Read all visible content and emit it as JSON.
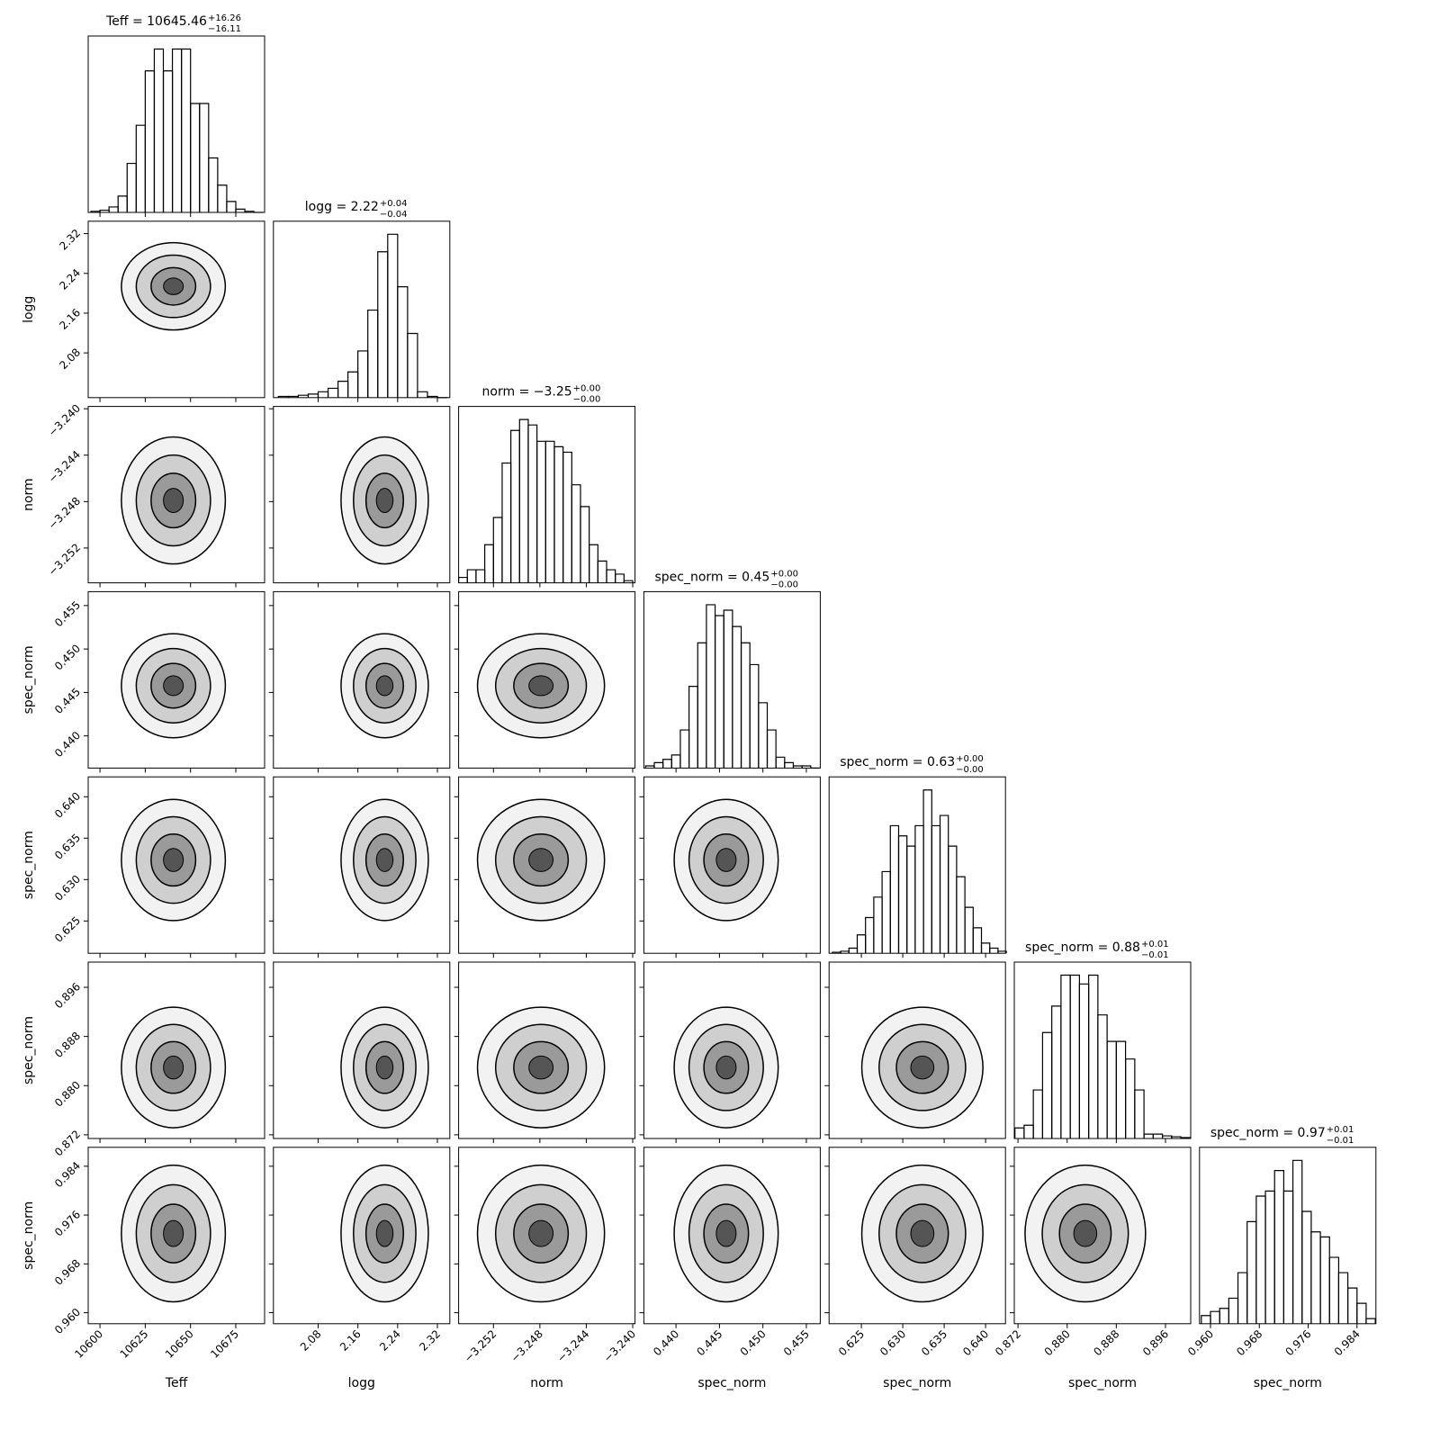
{
  "chart_data": {
    "type": "corner",
    "params": [
      {
        "label": "Teff",
        "title": "Teff = 10645.46",
        "title_plus": "+16.26",
        "title_minus": "−16.11",
        "lim": [
          10593.5,
          10690.9
        ],
        "ticks": [
          10600,
          10625,
          10650,
          10675
        ],
        "bins": [
          10595,
          10600,
          10605,
          10610,
          10615,
          10620,
          10625,
          10630,
          10635,
          10640,
          10645,
          10650,
          10655,
          10660,
          10665,
          10670,
          10675,
          10680,
          10685,
          10690
        ],
        "values": [
          1,
          2,
          5,
          15,
          45,
          80,
          130,
          150,
          130,
          150,
          150,
          100,
          100,
          50,
          25,
          10,
          3,
          1,
          0
        ]
      },
      {
        "label": "logg",
        "title": "logg = 2.22",
        "title_plus": "+0.04",
        "title_minus": "−0.04",
        "lim": [
          1.99,
          2.345
        ],
        "ticks": [
          2.08,
          2.16,
          2.24,
          2.32
        ],
        "bins": [
          2,
          2.02,
          2.04,
          2.06,
          2.08,
          2.1,
          2.12,
          2.14,
          2.16,
          2.18,
          2.2,
          2.22,
          2.24,
          2.26,
          2.28,
          2.3,
          2.32,
          2.34
        ],
        "values": [
          1,
          1,
          2,
          3,
          5,
          8,
          14,
          22,
          40,
          75,
          125,
          140,
          95,
          55,
          5,
          1,
          0
        ]
      },
      {
        "label": "norm",
        "title": "norm = −3.25",
        "title_plus": "+0.00",
        "title_minus": "−0.00",
        "lim": [
          -3.255,
          -3.2398
        ],
        "ticks": [
          {
            "value": -3.252,
            "label": "−3.252"
          },
          {
            "value": -3.248,
            "label": "−3.248"
          },
          {
            "value": -3.244,
            "label": "−3.244"
          },
          {
            "value": -3.24,
            "label": "−3.240"
          }
        ],
        "bins": [
          -3.255,
          -3.25425,
          -3.2535,
          -3.25275,
          -3.252,
          -3.25125,
          -3.2505,
          -3.24975,
          -3.249,
          -3.24825,
          -3.2475,
          -3.24675,
          -3.246,
          -3.24525,
          -3.2445,
          -3.24375,
          -3.243,
          -3.24225,
          -3.2415,
          -3.24075,
          -3.24
        ],
        "values": [
          5,
          12,
          12,
          35,
          60,
          110,
          140,
          150,
          145,
          130,
          130,
          125,
          120,
          90,
          70,
          35,
          20,
          12,
          8,
          2
        ]
      },
      {
        "label": "spec_norm",
        "title": "spec_norm = 0.45",
        "title_plus": "+0.00",
        "title_minus": "−0.00",
        "lim": [
          0.4363,
          0.4566
        ],
        "ticks": [
          {
            "value": 0.44,
            "label": "0.440"
          },
          0.445,
          {
            "value": 0.45,
            "label": "0.450"
          },
          0.455
        ],
        "bins": [
          0.4365,
          0.4375,
          0.4385,
          0.4395,
          0.4405,
          0.4415,
          0.4425,
          0.4435,
          0.4445,
          0.4455,
          0.4465,
          0.4475,
          0.4485,
          0.4495,
          0.4505,
          0.4515,
          0.4525,
          0.4535,
          0.4545,
          0.4555,
          0.4565
        ],
        "values": [
          2,
          5,
          8,
          12,
          35,
          75,
          115,
          150,
          140,
          145,
          130,
          115,
          95,
          60,
          35,
          10,
          5,
          2,
          2,
          0
        ]
      },
      {
        "label": "spec_norm",
        "title": "spec_norm = 0.63",
        "title_plus": "+0.00",
        "title_minus": "−0.00",
        "lim": [
          0.6211,
          0.6424
        ],
        "ticks": [
          0.625,
          {
            "value": 0.63,
            "label": "0.630"
          },
          0.635,
          {
            "value": 0.64,
            "label": "0.640"
          }
        ],
        "bins": [
          0.6215,
          0.6225,
          0.6235,
          0.6245,
          0.6255,
          0.6265,
          0.6275,
          0.6285,
          0.6295,
          0.6305,
          0.6315,
          0.6325,
          0.6335,
          0.6345,
          0.6355,
          0.6365,
          0.6375,
          0.6385,
          0.6395,
          0.6405,
          0.6415,
          0.6425
        ],
        "values": [
          1,
          2,
          5,
          18,
          35,
          55,
          80,
          125,
          115,
          105,
          125,
          160,
          125,
          135,
          105,
          75,
          45,
          25,
          10,
          5,
          2
        ]
      },
      {
        "label": "spec_norm",
        "title": "spec_norm = 0.88",
        "title_plus": "+0.01",
        "title_minus": "−0.01",
        "lim": [
          0.8714,
          0.9001
        ],
        "ticks": [
          0.872,
          {
            "value": 0.88,
            "label": "0.880"
          },
          0.888,
          0.896
        ],
        "bins": [
          0.8715,
          0.873,
          0.8745,
          0.876,
          0.8775,
          0.879,
          0.8805,
          0.882,
          0.8835,
          0.885,
          0.8865,
          0.888,
          0.8895,
          0.891,
          0.8925,
          0.894,
          0.8955,
          0.897,
          0.8985,
          0.9
        ],
        "values": [
          12,
          15,
          55,
          120,
          150,
          185,
          185,
          175,
          185,
          140,
          110,
          110,
          90,
          55,
          5,
          5,
          3,
          2,
          1
        ]
      },
      {
        "label": "spec_norm",
        "title": "spec_norm = 0.97",
        "title_plus": "+0.01",
        "title_minus": "−0.01",
        "lim": [
          0.9582,
          0.9871
        ],
        "ticks": [
          {
            "value": 0.96,
            "label": "0.960"
          },
          0.968,
          0.976,
          0.984
        ],
        "bins": [
          0.9585,
          0.96,
          0.9615,
          0.963,
          0.9645,
          0.966,
          0.9675,
          0.969,
          0.9705,
          0.972,
          0.9735,
          0.975,
          0.9765,
          0.978,
          0.9795,
          0.981,
          0.9825,
          0.984,
          0.9855,
          0.987
        ],
        "values": [
          8,
          12,
          15,
          25,
          50,
          100,
          125,
          130,
          150,
          130,
          160,
          110,
          90,
          85,
          65,
          50,
          35,
          20,
          5
        ]
      }
    ]
  }
}
